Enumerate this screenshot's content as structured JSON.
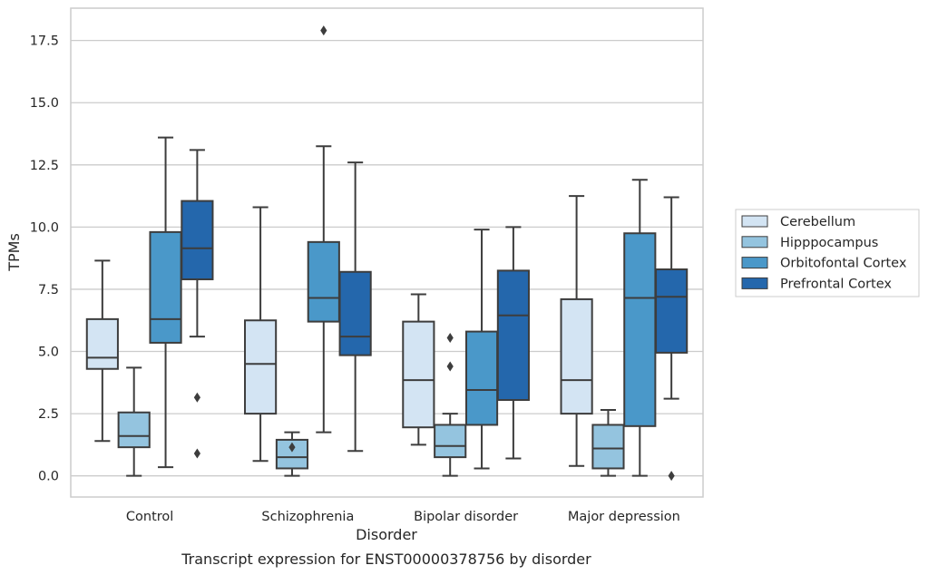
{
  "chart_data": {
    "type": "box",
    "title": "",
    "caption": "Transcript expression for ENST00000378756 by disorder",
    "xlabel": "Disorder",
    "ylabel": "TPMs",
    "ylim": [
      -0.85,
      18.8
    ],
    "yticks": [
      "0.0",
      "2.5",
      "5.0",
      "7.5",
      "10.0",
      "12.5",
      "15.0",
      "17.5"
    ],
    "grid": "horizontal",
    "legend_position": "right",
    "categories": [
      "Control",
      "Schizophrenia",
      "Bipolar disorder",
      "Major depression"
    ],
    "series": [
      {
        "name": "Cerebellum",
        "color": "#d3e4f3",
        "boxes": [
          {
            "whislo": 1.4,
            "q1": 4.3,
            "med": 4.75,
            "q3": 6.3,
            "whishi": 8.65,
            "fliers": []
          },
          {
            "whislo": 0.6,
            "q1": 2.5,
            "med": 4.5,
            "q3": 6.25,
            "whishi": 10.8,
            "fliers": []
          },
          {
            "whislo": 1.25,
            "q1": 1.95,
            "med": 3.85,
            "q3": 6.2,
            "whishi": 7.3,
            "fliers": []
          },
          {
            "whislo": 0.4,
            "q1": 2.5,
            "med": 3.85,
            "q3": 7.1,
            "whishi": 11.25,
            "fliers": []
          }
        ]
      },
      {
        "name": "Hipppocampus",
        "color": "#94c4df",
        "boxes": [
          {
            "whislo": 0.0,
            "q1": 1.15,
            "med": 1.6,
            "q3": 2.55,
            "whishi": 4.35,
            "fliers": []
          },
          {
            "whislo": 0.0,
            "q1": 0.3,
            "med": 0.75,
            "q3": 1.45,
            "whishi": 1.75,
            "fliers": [
              1.15
            ]
          },
          {
            "whislo": 0.0,
            "q1": 0.75,
            "med": 1.2,
            "q3": 2.05,
            "whishi": 2.5,
            "fliers": [
              5.55,
              4.4
            ]
          },
          {
            "whislo": 0.0,
            "q1": 0.3,
            "med": 1.1,
            "q3": 2.05,
            "whishi": 2.65,
            "fliers": []
          }
        ]
      },
      {
        "name": "Orbitofontal Cortex",
        "color": "#4a98c9",
        "boxes": [
          {
            "whislo": 0.35,
            "q1": 5.35,
            "med": 6.3,
            "q3": 9.8,
            "whishi": 13.6,
            "fliers": []
          },
          {
            "whislo": 1.75,
            "q1": 6.2,
            "med": 7.15,
            "q3": 9.4,
            "whishi": 13.25,
            "fliers": [
              17.9
            ]
          },
          {
            "whislo": 0.3,
            "q1": 2.05,
            "med": 3.45,
            "q3": 5.8,
            "whishi": 9.9,
            "fliers": []
          },
          {
            "whislo": 0.0,
            "q1": 2.0,
            "med": 7.15,
            "q3": 9.75,
            "whishi": 11.9,
            "fliers": []
          }
        ]
      },
      {
        "name": "Prefrontal Cortex",
        "color": "#2467ac",
        "boxes": [
          {
            "whislo": 5.6,
            "q1": 7.9,
            "med": 9.15,
            "q3": 11.05,
            "whishi": 13.1,
            "fliers": [
              3.15,
              0.9
            ]
          },
          {
            "whislo": 1.0,
            "q1": 4.85,
            "med": 5.6,
            "q3": 8.2,
            "whishi": 12.6,
            "fliers": []
          },
          {
            "whislo": 0.7,
            "q1": 3.05,
            "med": 6.45,
            "q3": 8.25,
            "whishi": 10.0,
            "fliers": []
          },
          {
            "whislo": 3.1,
            "q1": 4.95,
            "med": 7.2,
            "q3": 8.3,
            "whishi": 11.2,
            "fliers": [
              0.0
            ]
          }
        ]
      }
    ]
  }
}
